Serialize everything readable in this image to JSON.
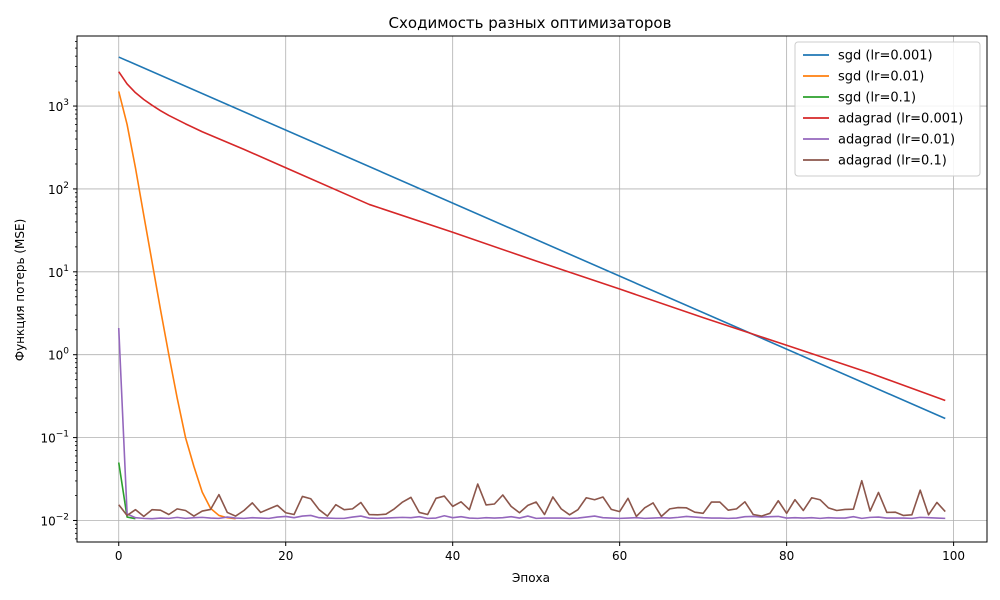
{
  "chart_data": {
    "type": "line",
    "title": "Сходимость разных оптимизаторов",
    "xlabel": "Эпоха",
    "ylabel": "Функция потерь (MSE)",
    "y_scale": "log",
    "xlim": [
      -5,
      104
    ],
    "ylim": [
      0.0055,
      7000
    ],
    "grid": true,
    "legend_position": "top-right",
    "x_ticks": [
      0,
      20,
      40,
      60,
      80,
      100
    ],
    "y_ticks": [
      0.01,
      0.1,
      1,
      10,
      100,
      1000
    ],
    "y_tick_labels": [
      "10^-2",
      "10^-1",
      "10^0",
      "10^1",
      "10^2",
      "10^3"
    ],
    "series": [
      {
        "name": "sgd (lr=0.001)",
        "color": "#1f77b4",
        "x": [
          0,
          99
        ],
        "values": [
          3900,
          0.17
        ]
      },
      {
        "name": "sgd (lr=0.01)",
        "color": "#ff7f0e",
        "x": [
          0,
          1,
          2,
          3,
          4,
          5,
          6,
          7,
          8,
          9,
          10,
          11,
          12,
          13,
          14
        ],
        "values": [
          1500,
          600,
          180,
          48,
          13,
          3.5,
          1.0,
          0.3,
          0.1,
          0.045,
          0.022,
          0.014,
          0.0115,
          0.0108,
          0.0105
        ]
      },
      {
        "name": "sgd (lr=0.1)",
        "color": "#2ca02c",
        "x": [
          0,
          1,
          2
        ],
        "values": [
          0.05,
          0.011,
          0.0105
        ]
      },
      {
        "name": "adagrad (lr=0.001)",
        "color": "#d62728",
        "x": [
          0,
          1,
          2,
          3,
          4,
          5,
          6,
          8,
          10,
          15,
          20,
          30,
          40,
          50,
          60,
          70,
          80,
          90,
          99
        ],
        "values": [
          2600,
          1850,
          1450,
          1200,
          1020,
          880,
          770,
          610,
          490,
          300,
          180,
          65,
          30,
          13.5,
          6.2,
          2.8,
          1.3,
          0.6,
          0.28
        ]
      },
      {
        "name": "adagrad (lr=0.01)",
        "color": "#9467bd",
        "x": [
          0,
          1,
          2,
          3,
          4,
          5,
          6,
          7,
          8,
          9,
          10,
          11,
          12,
          13,
          14,
          15,
          16,
          17,
          18,
          19,
          20,
          21,
          22,
          23,
          24,
          25,
          26,
          27,
          28,
          29,
          30,
          31,
          32,
          33,
          34,
          35,
          36,
          37,
          38,
          39,
          40,
          41,
          42,
          43,
          44,
          45,
          46,
          47,
          48,
          49,
          50,
          51,
          52,
          53,
          54,
          55,
          56,
          57,
          58,
          59,
          60,
          61,
          62,
          63,
          64,
          65,
          66,
          67,
          68,
          69,
          70,
          71,
          72,
          73,
          74,
          75,
          76,
          77,
          78,
          79,
          80,
          81,
          82,
          83,
          84,
          85,
          86,
          87,
          88,
          89,
          90,
          91,
          92,
          93,
          94,
          95,
          96,
          97,
          98,
          99
        ],
        "values": [
          2.1,
          0.012,
          0.0108,
          0.0106,
          0.0105,
          0.0107,
          0.0106,
          0.0109,
          0.0106,
          0.0108,
          0.0109,
          0.0107,
          0.0106,
          0.011,
          0.0107,
          0.0106,
          0.0108,
          0.0107,
          0.0106,
          0.011,
          0.0112,
          0.0108,
          0.0113,
          0.0115,
          0.0108,
          0.0107,
          0.0106,
          0.0106,
          0.011,
          0.0113,
          0.0107,
          0.0106,
          0.0107,
          0.0108,
          0.0109,
          0.0108,
          0.0111,
          0.0106,
          0.0107,
          0.0114,
          0.0108,
          0.0111,
          0.0107,
          0.0106,
          0.0108,
          0.0107,
          0.0108,
          0.0111,
          0.0107,
          0.0113,
          0.0106,
          0.0107,
          0.0107,
          0.0107,
          0.0106,
          0.0107,
          0.011,
          0.0113,
          0.0108,
          0.0107,
          0.0106,
          0.0107,
          0.0108,
          0.0106,
          0.0107,
          0.0108,
          0.0107,
          0.0109,
          0.0112,
          0.011,
          0.0108,
          0.0107,
          0.0107,
          0.0106,
          0.0107,
          0.0111,
          0.0112,
          0.011,
          0.0111,
          0.0112,
          0.0107,
          0.0108,
          0.0107,
          0.0108,
          0.0106,
          0.0108,
          0.0107,
          0.0107,
          0.0111,
          0.0106,
          0.0109,
          0.011,
          0.0107,
          0.0107,
          0.0107,
          0.0106,
          0.0109,
          0.0108,
          0.0107,
          0.0106
        ]
      },
      {
        "name": "adagrad (lr=0.1)",
        "color": "#8c564b",
        "x": [
          0,
          1,
          2,
          3,
          4,
          5,
          6,
          7,
          8,
          9,
          10,
          11,
          12,
          13,
          14,
          15,
          16,
          17,
          18,
          19,
          20,
          21,
          22,
          23,
          24,
          25,
          26,
          27,
          28,
          29,
          30,
          31,
          32,
          33,
          34,
          35,
          36,
          37,
          38,
          39,
          40,
          41,
          42,
          43,
          44,
          45,
          46,
          47,
          48,
          49,
          50,
          51,
          52,
          53,
          54,
          55,
          56,
          57,
          58,
          59,
          60,
          61,
          62,
          63,
          64,
          65,
          66,
          67,
          68,
          69,
          70,
          71,
          72,
          73,
          74,
          75,
          76,
          77,
          78,
          79,
          80,
          81,
          82,
          83,
          84,
          85,
          86,
          87,
          88,
          89,
          90,
          91,
          92,
          93,
          94,
          95,
          96,
          97,
          98,
          99
        ],
        "values": [
          0.0155,
          0.0115,
          0.0135,
          0.0112,
          0.0135,
          0.0133,
          0.0118,
          0.0138,
          0.0132,
          0.0113,
          0.013,
          0.0136,
          0.0205,
          0.0125,
          0.0113,
          0.0132,
          0.0163,
          0.0125,
          0.0138,
          0.0152,
          0.0124,
          0.0118,
          0.0195,
          0.0183,
          0.0135,
          0.0113,
          0.0155,
          0.0135,
          0.0138,
          0.0165,
          0.0118,
          0.0117,
          0.0119,
          0.0138,
          0.0167,
          0.019,
          0.0125,
          0.0118,
          0.0185,
          0.0197,
          0.0148,
          0.0168,
          0.0135,
          0.0275,
          0.0154,
          0.0158,
          0.0203,
          0.0148,
          0.0124,
          0.0152,
          0.0167,
          0.0118,
          0.0192,
          0.0138,
          0.0117,
          0.0135,
          0.0188,
          0.0178,
          0.0192,
          0.0136,
          0.0128,
          0.0185,
          0.0112,
          0.0142,
          0.0163,
          0.0112,
          0.0138,
          0.0143,
          0.0142,
          0.0126,
          0.0122,
          0.0167,
          0.0167,
          0.0133,
          0.0138,
          0.0168,
          0.0118,
          0.0113,
          0.0122,
          0.0173,
          0.0122,
          0.0178,
          0.0132,
          0.0188,
          0.0178,
          0.0142,
          0.0132,
          0.0136,
          0.0137,
          0.0302,
          0.013,
          0.0218,
          0.0125,
          0.0126,
          0.0115,
          0.0117,
          0.0232,
          0.0117,
          0.0165,
          0.0128
        ]
      }
    ]
  }
}
